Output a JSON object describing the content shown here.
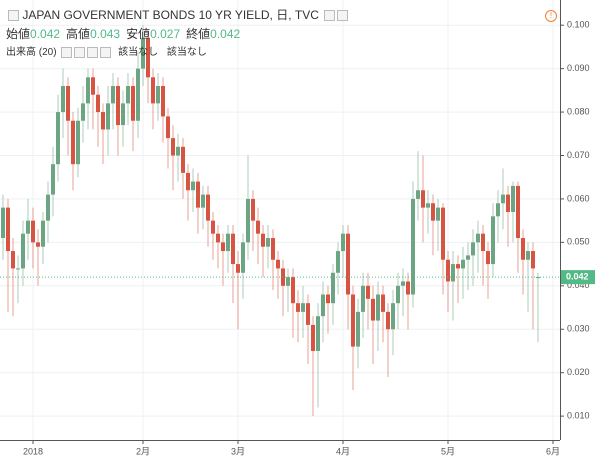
{
  "chart_data": {
    "type": "candlestick",
    "title": "JAPAN GOVERNMENT BONDS 10 YR YIELD, 日, TVC",
    "ohlc_header": [
      {
        "label": "始値",
        "value": 0.042
      },
      {
        "label": "高値",
        "value": 0.043
      },
      {
        "label": "安値",
        "value": 0.027
      },
      {
        "label": "終値",
        "value": 0.042
      }
    ],
    "volume_label": "出来高 (20)",
    "volume_values": [
      "該当なし",
      "該当なし"
    ],
    "last_price": 0.042,
    "up_color": "#6ba583",
    "down_color": "#d75442",
    "grid": true,
    "xlim": [
      -0.6,
      111.4
    ],
    "xticks": [
      {
        "value": 6,
        "label": "2018"
      },
      {
        "value": 28,
        "label": "2月"
      },
      {
        "value": 47,
        "label": "3月"
      },
      {
        "value": 68,
        "label": "4月"
      },
      {
        "value": 89,
        "label": "5月"
      },
      {
        "value": 110,
        "label": "6月"
      }
    ],
    "ylim": [
      0.0045,
      0.1058
    ],
    "yticks": [
      {
        "value": 0.01,
        "label": "0.010"
      },
      {
        "value": 0.02,
        "label": "0.020"
      },
      {
        "value": 0.03,
        "label": "0.030"
      },
      {
        "value": 0.04,
        "label": "0.040"
      },
      {
        "value": 0.05,
        "label": "0.050"
      },
      {
        "value": 0.06,
        "label": "0.060"
      },
      {
        "value": 0.07,
        "label": "0.070"
      },
      {
        "value": 0.08,
        "label": "0.080"
      },
      {
        "value": 0.09,
        "label": "0.090"
      },
      {
        "value": 0.1,
        "label": "0.100"
      }
    ],
    "open": [
      0.051,
      0.058,
      0.048,
      0.044,
      0.044,
      0.052,
      0.055,
      0.05,
      0.049,
      0.055,
      0.061,
      0.068,
      0.08,
      0.086,
      0.078,
      0.068,
      0.078,
      0.082,
      0.088,
      0.084,
      0.08,
      0.076,
      0.082,
      0.086,
      0.077,
      0.082,
      0.086,
      0.078,
      0.09,
      0.097,
      0.088,
      0.082,
      0.086,
      0.079,
      0.074,
      0.07,
      0.072,
      0.066,
      0.062,
      0.064,
      0.058,
      0.061,
      0.055,
      0.052,
      0.05,
      0.048,
      0.052,
      0.045,
      0.043,
      0.05,
      0.06,
      0.055,
      0.052,
      0.049,
      0.051,
      0.046,
      0.044,
      0.04,
      0.042,
      0.036,
      0.034,
      0.036,
      0.031,
      0.025,
      0.033,
      0.038,
      0.036,
      0.043,
      0.048,
      0.052,
      0.038,
      0.026,
      0.034,
      0.04,
      0.037,
      0.032,
      0.038,
      0.034,
      0.03,
      0.036,
      0.04,
      0.041,
      0.038,
      0.06,
      0.062,
      0.058,
      0.059,
      0.055,
      0.058,
      0.046,
      0.041,
      0.045,
      0.044,
      0.046,
      0.047,
      0.05,
      0.052,
      0.048,
      0.045,
      0.056,
      0.059,
      0.061,
      0.057,
      0.063,
      0.051,
      0.046,
      0.048,
      0.042
    ],
    "high": [
      0.061,
      0.06,
      0.051,
      0.047,
      0.055,
      0.06,
      0.058,
      0.053,
      0.057,
      0.064,
      0.072,
      0.084,
      0.09,
      0.088,
      0.08,
      0.081,
      0.086,
      0.09,
      0.09,
      0.086,
      0.082,
      0.086,
      0.089,
      0.088,
      0.085,
      0.089,
      0.088,
      0.094,
      0.1,
      0.099,
      0.09,
      0.089,
      0.088,
      0.081,
      0.077,
      0.075,
      0.074,
      0.068,
      0.067,
      0.066,
      0.063,
      0.063,
      0.057,
      0.054,
      0.052,
      0.054,
      0.054,
      0.048,
      0.052,
      0.07,
      0.062,
      0.058,
      0.054,
      0.054,
      0.053,
      0.048,
      0.046,
      0.044,
      0.044,
      0.039,
      0.04,
      0.038,
      0.033,
      0.036,
      0.041,
      0.04,
      0.045,
      0.05,
      0.054,
      0.054,
      0.04,
      0.037,
      0.043,
      0.043,
      0.04,
      0.041,
      0.04,
      0.036,
      0.039,
      0.043,
      0.044,
      0.043,
      0.064,
      0.071,
      0.07,
      0.062,
      0.061,
      0.06,
      0.059,
      0.048,
      0.048,
      0.047,
      0.049,
      0.05,
      0.053,
      0.055,
      0.054,
      0.05,
      0.059,
      0.062,
      0.067,
      0.063,
      0.064,
      0.064,
      0.053,
      0.05,
      0.05,
      0.043
    ],
    "low": [
      0.046,
      0.034,
      0.033,
      0.036,
      0.04,
      0.046,
      0.044,
      0.04,
      0.045,
      0.05,
      0.056,
      0.064,
      0.074,
      0.07,
      0.062,
      0.065,
      0.073,
      0.076,
      0.076,
      0.072,
      0.068,
      0.07,
      0.076,
      0.07,
      0.072,
      0.077,
      0.071,
      0.074,
      0.086,
      0.082,
      0.076,
      0.078,
      0.073,
      0.067,
      0.062,
      0.064,
      0.06,
      0.055,
      0.057,
      0.052,
      0.053,
      0.049,
      0.046,
      0.044,
      0.04,
      0.043,
      0.036,
      0.03,
      0.037,
      0.046,
      0.048,
      0.045,
      0.042,
      0.044,
      0.039,
      0.037,
      0.033,
      0.034,
      0.028,
      0.027,
      0.028,
      0.022,
      0.01,
      0.012,
      0.027,
      0.029,
      0.031,
      0.038,
      0.042,
      0.03,
      0.016,
      0.021,
      0.028,
      0.03,
      0.022,
      0.025,
      0.027,
      0.019,
      0.024,
      0.03,
      0.033,
      0.03,
      0.035,
      0.055,
      0.05,
      0.052,
      0.047,
      0.048,
      0.038,
      0.034,
      0.032,
      0.036,
      0.037,
      0.039,
      0.04,
      0.043,
      0.04,
      0.037,
      0.042,
      0.05,
      0.053,
      0.049,
      0.05,
      0.043,
      0.038,
      0.034,
      0.03,
      0.027
    ],
    "close": [
      0.058,
      0.048,
      0.044,
      0.044,
      0.052,
      0.055,
      0.05,
      0.049,
      0.055,
      0.061,
      0.068,
      0.08,
      0.086,
      0.078,
      0.068,
      0.078,
      0.082,
      0.088,
      0.084,
      0.08,
      0.076,
      0.082,
      0.086,
      0.077,
      0.082,
      0.086,
      0.078,
      0.09,
      0.097,
      0.088,
      0.082,
      0.086,
      0.079,
      0.074,
      0.07,
      0.072,
      0.066,
      0.062,
      0.064,
      0.058,
      0.061,
      0.055,
      0.052,
      0.05,
      0.048,
      0.052,
      0.045,
      0.043,
      0.05,
      0.06,
      0.055,
      0.052,
      0.049,
      0.051,
      0.046,
      0.044,
      0.04,
      0.042,
      0.036,
      0.034,
      0.036,
      0.031,
      0.025,
      0.033,
      0.038,
      0.036,
      0.043,
      0.048,
      0.052,
      0.038,
      0.026,
      0.034,
      0.04,
      0.037,
      0.032,
      0.038,
      0.034,
      0.03,
      0.036,
      0.04,
      0.041,
      0.038,
      0.06,
      0.062,
      0.058,
      0.059,
      0.055,
      0.058,
      0.046,
      0.041,
      0.045,
      0.044,
      0.046,
      0.047,
      0.05,
      0.052,
      0.048,
      0.045,
      0.056,
      0.059,
      0.061,
      0.057,
      0.063,
      0.051,
      0.046,
      0.048,
      0.044,
      0.042
    ]
  }
}
